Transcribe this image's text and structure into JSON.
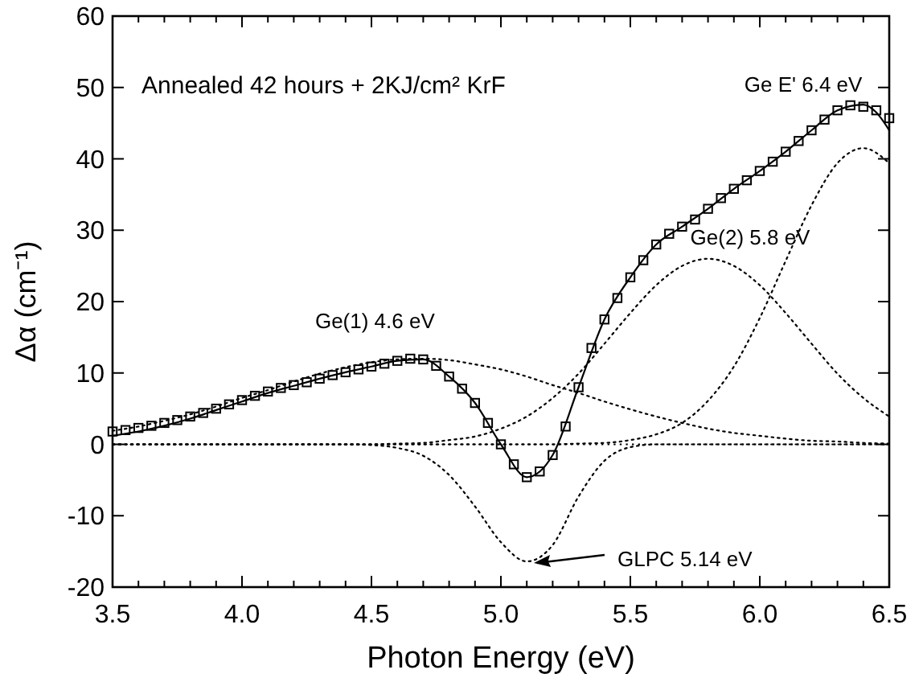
{
  "chart_data": {
    "type": "line",
    "xlabel": "Photon Energy (eV)",
    "ylabel": "Δα (cm⁻¹)",
    "xlim": [
      3.5,
      6.5
    ],
    "ylim": [
      -20,
      60
    ],
    "xticks": [
      3.5,
      {
        "value": 3.6,
        "label": null
      },
      {
        "value": 3.7,
        "label": null
      },
      {
        "value": 3.8,
        "label": null
      },
      {
        "value": 3.9,
        "label": null
      },
      {
        "value": 4,
        "label": "4.0"
      },
      {
        "value": 4.1,
        "label": null
      },
      {
        "value": 4.2,
        "label": null
      },
      {
        "value": 4.3,
        "label": null
      },
      {
        "value": 4.4,
        "label": null
      },
      4.5,
      {
        "value": 4.6,
        "label": null
      },
      {
        "value": 4.7,
        "label": null
      },
      {
        "value": 4.8,
        "label": null
      },
      {
        "value": 4.9,
        "label": null
      },
      {
        "value": 5,
        "label": "5.0"
      },
      {
        "value": 5.1,
        "label": null
      },
      {
        "value": 5.2,
        "label": null
      },
      {
        "value": 5.3,
        "label": null
      },
      {
        "value": 5.4,
        "label": null
      },
      5.5,
      {
        "value": 5.6,
        "label": null
      },
      {
        "value": 5.7,
        "label": null
      },
      {
        "value": 5.8,
        "label": null
      },
      {
        "value": 5.9,
        "label": null
      },
      {
        "value": 6,
        "label": "6.0"
      },
      {
        "value": 6.1,
        "label": null
      },
      {
        "value": 6.2,
        "label": null
      },
      {
        "value": 6.3,
        "label": null
      },
      {
        "value": 6.4,
        "label": null
      },
      6.5
    ],
    "yticks": [
      -20,
      -10,
      0,
      10,
      20,
      30,
      40,
      50,
      60
    ],
    "grid": false,
    "ref_lines": [
      {
        "axis": "y",
        "value": 0,
        "color": "#000000",
        "line_style": "dotted"
      }
    ],
    "annotations": [
      "Annealed 42 hours + 2KJ/cm² KrF",
      {
        "text": "Ge(1) 4.6 eV",
        "x": 4.68,
        "y": 12
      },
      {
        "text": "Ge(2) 5.8 eV",
        "x": 5.8,
        "y": 26
      },
      {
        "text": "Ge E' 6.4 eV",
        "x": 6.4,
        "y": 41.5
      },
      "GLPC 5.14 eV"
    ],
    "series": [
      {
        "color": "#000000",
        "line_style": "dotted",
        "x": [
          3.5,
          3.6,
          3.7,
          3.8,
          3.9,
          4.0,
          4.1,
          4.2,
          4.3,
          4.4,
          4.5,
          4.6,
          4.7,
          4.8,
          4.9,
          5.0,
          5.1,
          5.2,
          5.3,
          5.4,
          5.5,
          5.6,
          5.7,
          5.8,
          5.9,
          6.0,
          6.1,
          6.2,
          6.3,
          6.4,
          6.5
        ],
        "values": [
          1.9,
          2.5,
          3.3,
          4.2,
          5.3,
          6.5,
          7.6,
          8.8,
          9.9,
          10.8,
          11.5,
          11.9,
          12.0,
          11.8,
          11.2,
          10.5,
          9.5,
          8.3,
          7.2,
          6.0,
          4.9,
          3.9,
          3.0,
          2.2,
          1.6,
          1.2,
          0.8,
          0.5,
          0.4,
          0.2,
          0.1
        ]
      },
      {
        "color": "#000000",
        "line_style": "dotted",
        "x": [
          3.5,
          4.4,
          4.5,
          4.6,
          4.7,
          4.8,
          4.9,
          5.0,
          5.1,
          5.2,
          5.3,
          5.4,
          5.5,
          5.6,
          6.5
        ],
        "values": [
          0,
          0,
          -0.1,
          -0.5,
          -1.6,
          -4.3,
          -8.7,
          -13.7,
          -16.4,
          -14.1,
          -7.3,
          -2.3,
          -0.4,
          0,
          0
        ]
      },
      {
        "color": "#000000",
        "line_style": "dotted",
        "x": [
          3.5,
          4.5,
          4.6,
          4.7,
          4.8,
          4.9,
          5.0,
          5.1,
          5.2,
          5.3,
          5.4,
          5.5,
          5.6,
          5.7,
          5.8,
          5.9,
          6.0,
          6.1,
          6.2,
          6.3,
          6.4,
          6.5
        ],
        "values": [
          0,
          0,
          0.1,
          0.2,
          0.6,
          1.1,
          2.2,
          3.9,
          6.5,
          9.9,
          14.1,
          18.4,
          22.3,
          25.0,
          26.0,
          25.0,
          22.3,
          18.4,
          14.1,
          9.9,
          6.5,
          3.9
        ]
      },
      {
        "color": "#000000",
        "line_style": "dotted",
        "x": [
          3.5,
          5.2,
          5.3,
          5.4,
          5.5,
          5.6,
          5.7,
          5.8,
          5.9,
          6.0,
          6.1,
          6.2,
          6.3,
          6.4,
          6.5
        ],
        "values": [
          0,
          0,
          0.1,
          0.2,
          0.6,
          1.4,
          3.0,
          6.1,
          10.9,
          17.7,
          25.7,
          33.5,
          39.4,
          41.5,
          39.4
        ]
      },
      {
        "color": "#000000",
        "line_style": "solid",
        "x": [
          3.5,
          3.6,
          3.7,
          3.8,
          3.9,
          4.0,
          4.1,
          4.2,
          4.3,
          4.4,
          4.5,
          4.6,
          4.7,
          4.8,
          4.9,
          5.0,
          5.1,
          5.2,
          5.3,
          5.4,
          5.5,
          5.6,
          5.7,
          5.8,
          5.9,
          6.0,
          6.1,
          6.2,
          6.3,
          6.4,
          6.45,
          6.5
        ],
        "values": [
          1.2,
          1.8,
          2.6,
          3.6,
          4.8,
          6.0,
          7.2,
          8.2,
          9.2,
          10.1,
          10.9,
          11.7,
          11.9,
          9.5,
          5.8,
          0,
          -4.6,
          -1.5,
          8.0,
          17.5,
          23.4,
          28.0,
          30.5,
          33.0,
          35.8,
          38.3,
          41.0,
          44.0,
          46.8,
          47.6,
          46.5,
          44.0
        ]
      },
      {
        "type": "scatter",
        "color": "#000000",
        "marker": "square",
        "x": [
          3.5,
          3.55,
          3.6,
          3.65,
          3.7,
          3.75,
          3.8,
          3.85,
          3.9,
          3.95,
          4.0,
          4.05,
          4.1,
          4.15,
          4.2,
          4.25,
          4.3,
          4.35,
          4.4,
          4.45,
          4.5,
          4.55,
          4.6,
          4.65,
          4.7,
          4.75,
          4.8,
          4.85,
          4.9,
          4.95,
          5.0,
          5.05,
          5.1,
          5.15,
          5.2,
          5.25,
          5.3,
          5.35,
          5.4,
          5.45,
          5.5,
          5.55,
          5.6,
          5.65,
          5.7,
          5.75,
          5.8,
          5.85,
          5.9,
          5.95,
          6.0,
          6.05,
          6.1,
          6.15,
          6.2,
          6.25,
          6.3,
          6.35,
          6.4,
          6.45,
          6.5
        ],
        "values": [
          1.8,
          2.0,
          2.3,
          2.6,
          3.0,
          3.4,
          3.9,
          4.4,
          5.0,
          5.6,
          6.2,
          6.8,
          7.4,
          7.9,
          8.3,
          8.7,
          9.2,
          9.7,
          10.1,
          10.5,
          10.9,
          11.3,
          11.7,
          12.0,
          11.9,
          11.0,
          9.5,
          7.8,
          5.8,
          3.0,
          0,
          -2.8,
          -4.6,
          -3.8,
          -1.5,
          2.5,
          8.0,
          13.5,
          17.5,
          20.5,
          23.4,
          25.8,
          28.0,
          29.5,
          30.5,
          31.5,
          33.0,
          34.5,
          35.8,
          37.0,
          38.3,
          39.6,
          41.0,
          42.5,
          44.0,
          45.5,
          46.8,
          47.5,
          47.3,
          46.8,
          45.7
        ]
      }
    ]
  }
}
